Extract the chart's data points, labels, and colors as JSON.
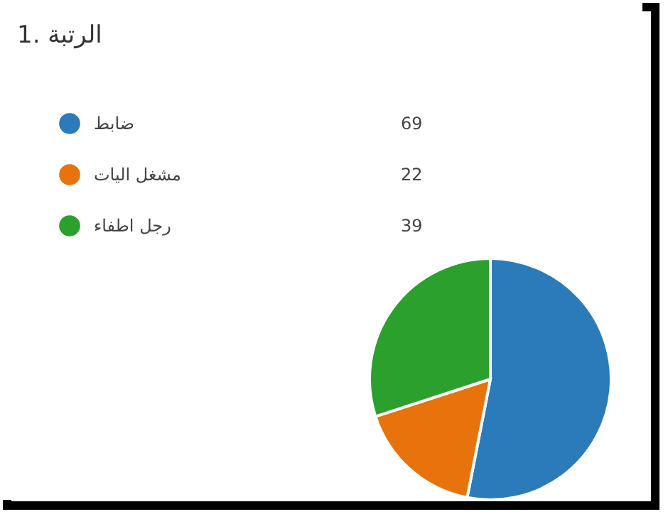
{
  "chart_data": {
    "type": "pie",
    "title": "1. الرتبة",
    "categories": [
      "ضابط",
      "مشغل اليات",
      "رجل اطفاء"
    ],
    "values": [
      69,
      22,
      39
    ],
    "colors": [
      "#2b7bba",
      "#e8730c",
      "#2ca02c"
    ],
    "data_labels": true,
    "legend": "top left"
  }
}
